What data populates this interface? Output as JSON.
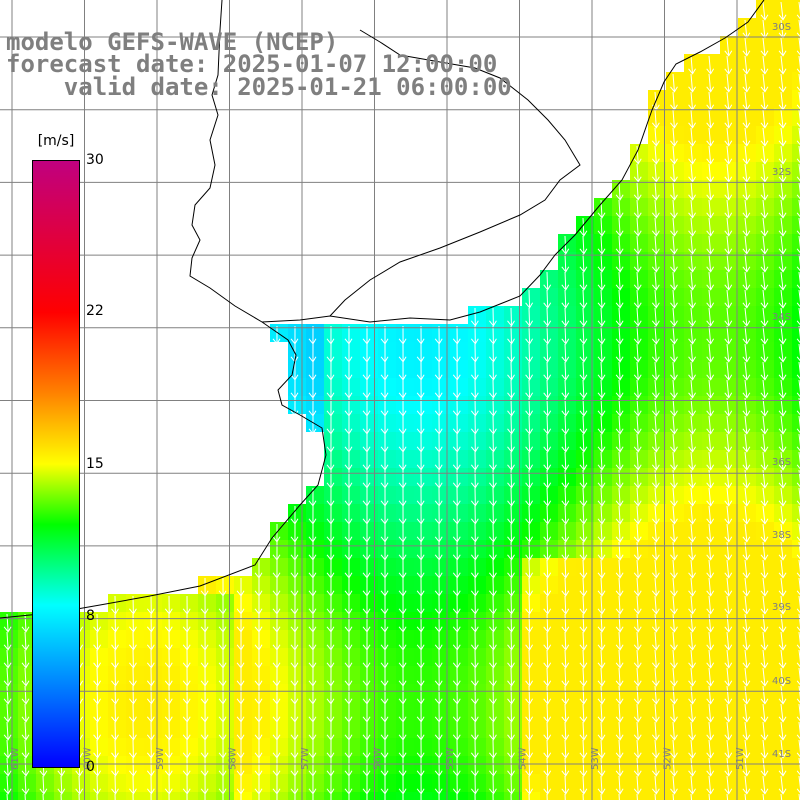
{
  "title": {
    "line1": "modelo GEFS-WAVE (NCEP)",
    "line2": "forecast date: 2025-01-07 12:00:00",
    "line3": "    valid date: 2025-01-21 06:00:00"
  },
  "colorbar": {
    "unit": "[m/s]",
    "min": 0,
    "max": 30,
    "ticks": [
      "30",
      "22",
      "15",
      "8",
      "0"
    ],
    "colors": [
      "#0000ff",
      "#00ffff",
      "#00ff00",
      "#ffff00",
      "#ff7f00",
      "#ff0000",
      "#c0007f"
    ]
  },
  "map": {
    "variable": "wind-speed",
    "arrow_color": "#ffffff",
    "land_color": "#ffffff",
    "grid_color": "#808080",
    "lat_labels": [
      "30S",
      "32S",
      "34S",
      "36S",
      "38S",
      "39S",
      "40S",
      "41S"
    ],
    "lon_labels": [
      "61W",
      "60W",
      "59W",
      "58W",
      "57W",
      "56W",
      "55W",
      "54W",
      "53W",
      "52W",
      "51W"
    ]
  }
}
